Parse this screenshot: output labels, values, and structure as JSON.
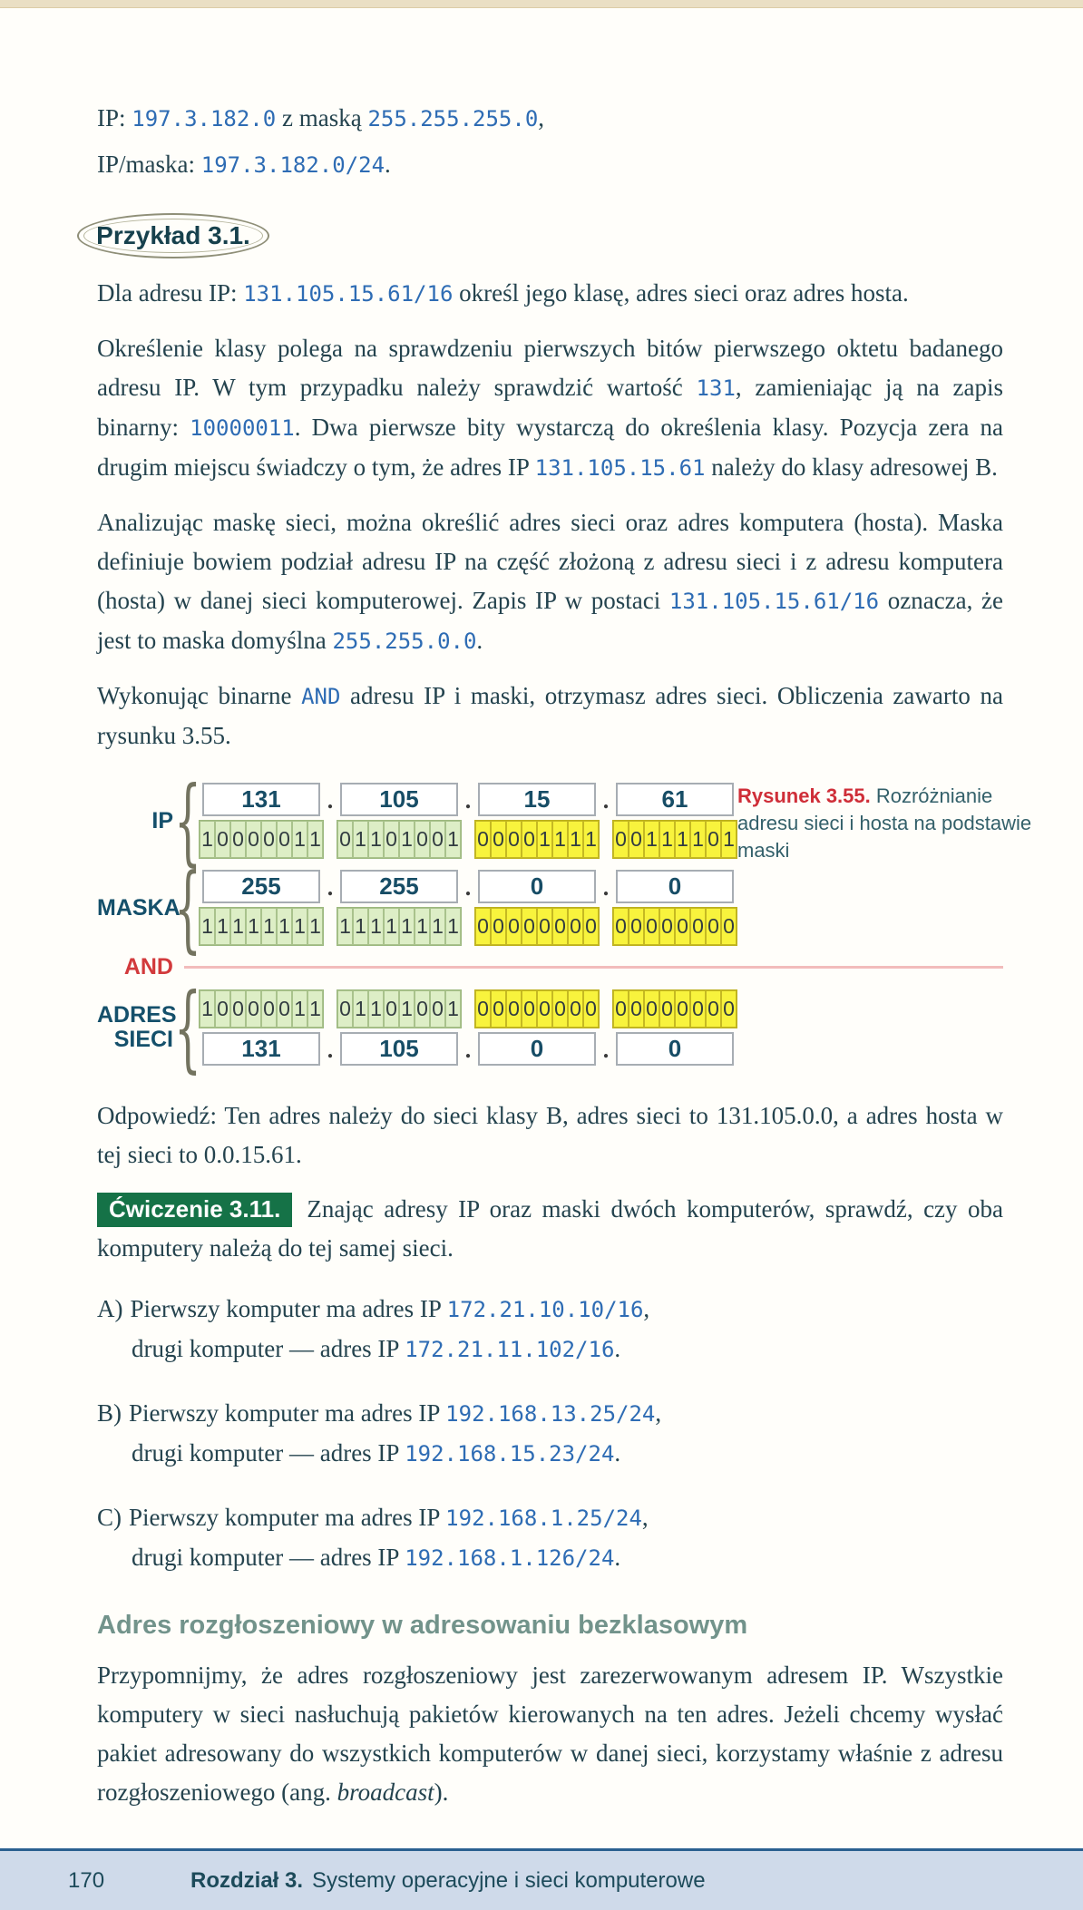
{
  "intro": {
    "line1": [
      {
        "s": "t",
        "x": "IP: "
      },
      {
        "s": "m",
        "x": "197.3.182.0"
      },
      {
        "s": "t",
        "x": " z maską "
      },
      {
        "s": "m",
        "x": "255.255.255.0"
      },
      {
        "s": "t",
        "x": ","
      }
    ],
    "line2": [
      {
        "s": "t",
        "x": "IP/maska: "
      },
      {
        "s": "m",
        "x": "197.3.182.0/24"
      },
      {
        "s": "t",
        "x": "."
      }
    ]
  },
  "example": {
    "badge": "Przykład 3.1.",
    "task": [
      {
        "s": "t",
        "x": "Dla adresu IP: "
      },
      {
        "s": "m",
        "x": "131.105.15.61/16"
      },
      {
        "s": "t",
        "x": " określ jego klasę, adres sieci oraz adres hosta."
      }
    ],
    "para1": [
      {
        "s": "t",
        "x": "Określenie klasy polega na sprawdzeniu pierwszych bitów pierwszego oktetu badanego adresu IP. W tym przypadku należy sprawdzić wartość "
      },
      {
        "s": "m",
        "x": "131"
      },
      {
        "s": "t",
        "x": ", zamieniając ją na zapis binarny: "
      },
      {
        "s": "m",
        "x": "10000011"
      },
      {
        "s": "t",
        "x": ". Dwa pierwsze bity wystarczą do określenia klasy. Pozycja zera na drugim miejscu świadczy o tym, że adres IP "
      },
      {
        "s": "m",
        "x": "131.105.15.61"
      },
      {
        "s": "t",
        "x": " należy do klasy adresowej B."
      }
    ],
    "para2": [
      {
        "s": "t",
        "x": "Analizując maskę sieci, można określić adres sieci oraz adres komputera (hosta). Maska definiuje bowiem podział adresu IP na część złożoną z adresu sieci i z adresu komputera (hosta) w danej sieci komputerowej. Zapis IP w postaci "
      },
      {
        "s": "m",
        "x": "131.105.15.61/16"
      },
      {
        "s": "t",
        "x": " oznacza, że jest to maska domyślna "
      },
      {
        "s": "m",
        "x": "255.255.0.0"
      },
      {
        "s": "t",
        "x": "."
      }
    ],
    "para3": [
      {
        "s": "t",
        "x": "Wykonując binarne "
      },
      {
        "s": "m",
        "x": "AND"
      },
      {
        "s": "t",
        "x": " adresu IP i maski, otrzymasz adres sieci. Obliczenia zawarto na rysunku 3.55."
      }
    ]
  },
  "figure": {
    "caption_label": "Rysunek 3.55.",
    "caption_text": " Rozróżnianie adresu sieci i hosta na podstawie maski",
    "octet_types": [
      "net",
      "net",
      "host",
      "host"
    ],
    "colors": {
      "net_fill": "#ddeec6",
      "host_fill": "#f8f33d",
      "and_red": "#d23a3c"
    },
    "groups": [
      {
        "label": "IP",
        "rows": [
          {
            "type": "dec",
            "values": [
              "131",
              "105",
              "15",
              "61"
            ]
          },
          {
            "type": "bin",
            "values": [
              "10000011",
              "01101001",
              "00001111",
              "00111101"
            ]
          }
        ]
      },
      {
        "label": "MASKA",
        "rows": [
          {
            "type": "dec",
            "values": [
              "255",
              "255",
              "0",
              "0"
            ]
          },
          {
            "type": "bin",
            "values": [
              "11111111",
              "11111111",
              "00000000",
              "00000000"
            ]
          }
        ]
      },
      {
        "label": "AND",
        "type": "operator"
      },
      {
        "label": "ADRES SIECI",
        "rows": [
          {
            "type": "bin",
            "values": [
              "10000011",
              "01101001",
              "00000000",
              "00000000"
            ]
          },
          {
            "type": "dec",
            "values": [
              "131",
              "105",
              "0",
              "0"
            ]
          }
        ]
      }
    ]
  },
  "answer": [
    {
      "s": "t",
      "x": "Odpowiedź: Ten adres należy do sieci klasy B, adres sieci to 131.105.0.0, a adres hosta w tej sieci to 0.0.15.61."
    }
  ],
  "exercise": {
    "badge": "Ćwiczenie 3.11.",
    "intro": [
      {
        "s": "t",
        "x": "Znając adresy IP oraz maski dwóch komputerów, sprawdź, czy oba komputery należą do tej samej sieci."
      }
    ],
    "items": [
      {
        "marker": "A)",
        "line1": [
          {
            "s": "t",
            "x": "Pierwszy komputer ma adres IP "
          },
          {
            "s": "m",
            "x": "172.21.10.10/16"
          },
          {
            "s": "t",
            "x": ","
          }
        ],
        "line2": [
          {
            "s": "t",
            "x": "drugi komputer — adres IP "
          },
          {
            "s": "m",
            "x": "172.21.11.102/16"
          },
          {
            "s": "t",
            "x": "."
          }
        ]
      },
      {
        "marker": "B)",
        "line1": [
          {
            "s": "t",
            "x": "Pierwszy komputer ma adres IP "
          },
          {
            "s": "m",
            "x": "192.168.13.25/24"
          },
          {
            "s": "t",
            "x": ","
          }
        ],
        "line2": [
          {
            "s": "t",
            "x": "drugi komputer — adres IP "
          },
          {
            "s": "m",
            "x": "192.168.15.23/24"
          },
          {
            "s": "t",
            "x": "."
          }
        ]
      },
      {
        "marker": "C)",
        "line1": [
          {
            "s": "t",
            "x": "Pierwszy komputer ma adres IP "
          },
          {
            "s": "m",
            "x": "192.168.1.25/24"
          },
          {
            "s": "t",
            "x": ","
          }
        ],
        "line2": [
          {
            "s": "t",
            "x": "drugi komputer — adres IP "
          },
          {
            "s": "m",
            "x": "192.168.1.126/24"
          },
          {
            "s": "t",
            "x": "."
          }
        ]
      }
    ]
  },
  "section": {
    "heading": "Adres rozgłoszeniowy w adresowaniu bezklasowym",
    "para": [
      {
        "s": "t",
        "x": "Przypomnijmy, że adres rozgłoszeniowy jest zarezerwowanym adresem IP. Wszystkie komputery w sieci nasłuchują pakietów kierowanych na ten adres. Jeżeli chcemy wysłać pakiet adresowany do wszystkich komputerów w danej sieci, korzystamy właśnie z adresu rozgłoszeniowego (ang. "
      },
      {
        "s": "i",
        "x": "broadcast"
      },
      {
        "s": "t",
        "x": ")."
      }
    ]
  },
  "footer": {
    "page_number": "170",
    "chapter_label": "Rozdział 3.",
    "chapter_title": "Systemy operacyjne i sieci komputerowe"
  }
}
